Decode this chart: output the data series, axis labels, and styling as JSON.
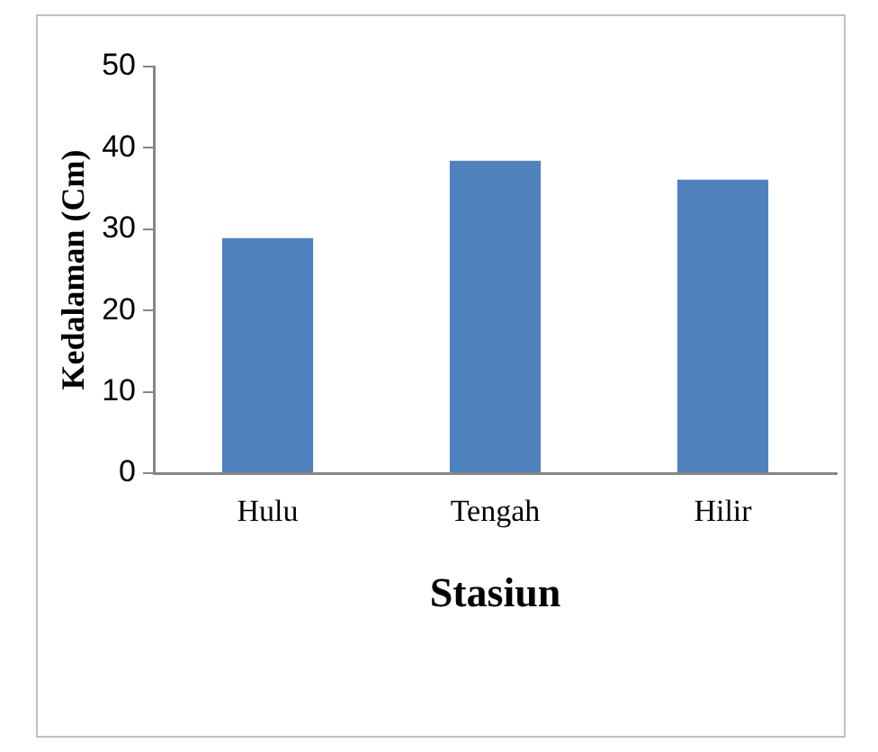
{
  "chart_data": {
    "type": "bar",
    "xlabel": "Stasiun",
    "ylabel": "Kedalaman (Cm)",
    "categories": [
      "Hulu",
      "Tengah",
      "Hilir"
    ],
    "values": [
      28.9,
      38.4,
      36.1
    ],
    "color": "#4f81bd",
    "ylim": [
      0,
      50
    ],
    "yticks": [
      0,
      10,
      20,
      30,
      40,
      50
    ],
    "grid": false,
    "legend": false
  }
}
